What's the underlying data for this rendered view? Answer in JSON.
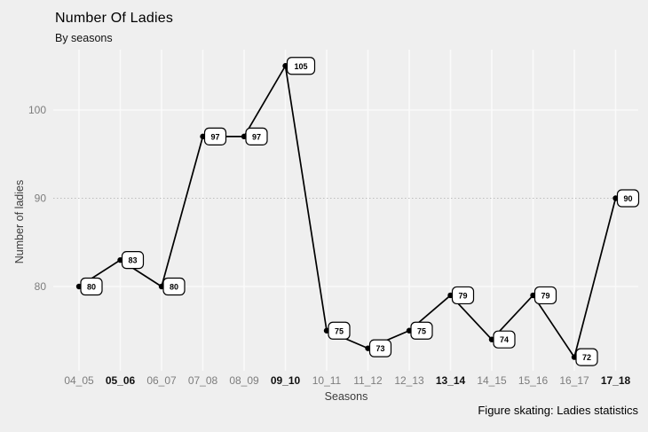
{
  "chart_data": {
    "type": "line",
    "title": "Number Of Ladies",
    "subtitle": "By seasons",
    "xlabel": "Seasons",
    "ylabel": "Number of ladies",
    "caption": "Figure skating: Ladies statistics",
    "categories": [
      "04_05",
      "05_06",
      "06_07",
      "07_08",
      "08_09",
      "09_10",
      "10_11",
      "11_12",
      "12_13",
      "13_14",
      "14_15",
      "15_16",
      "16_17",
      "17_18"
    ],
    "values": [
      80,
      83,
      80,
      97,
      97,
      105,
      75,
      73,
      75,
      79,
      74,
      79,
      72,
      90
    ],
    "bold_categories": [
      "05_06",
      "09_10",
      "13_14",
      "17_18"
    ],
    "yticks": [
      80,
      90,
      100
    ],
    "ylim": [
      70.5,
      107
    ],
    "grid": {
      "vertical_at_each_category": true,
      "solid_at": [
        80,
        100
      ],
      "dotted_at": [
        90
      ]
    },
    "legend": "none",
    "point_labels_shown": true,
    "colors": {
      "background": "#efefef",
      "gridline": "#fafafa",
      "grid_dotted": "#bdbdbd",
      "line": "#000000",
      "point": "#000000",
      "label_box_bg": "#ffffff",
      "label_box_border": "#000000",
      "label_text": "#000000",
      "tick_label": "#7d7d7d",
      "tick_label_bold": "#111111"
    }
  }
}
